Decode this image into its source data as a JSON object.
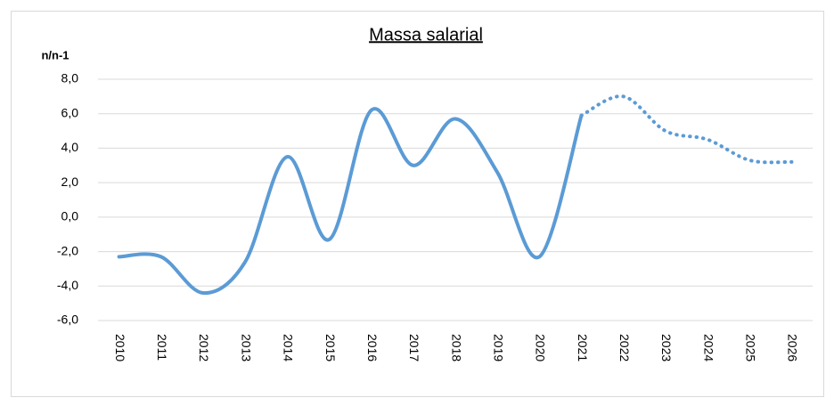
{
  "chart_data": {
    "type": "line",
    "title": "Massa salarial",
    "y_label": "n/n-1",
    "categories": [
      "2010",
      "2011",
      "2012",
      "2013",
      "2014",
      "2015",
      "2016",
      "2017",
      "2018",
      "2019",
      "2020",
      "2021",
      "2022",
      "2023",
      "2024",
      "2025",
      "2026"
    ],
    "series": [
      {
        "color": "#5b9bd5",
        "style": "solid",
        "values": [
          -2.3,
          -2.3,
          -4.4,
          -2.6,
          3.5,
          -1.3,
          6.2,
          3.0,
          5.7,
          2.6,
          -2.3,
          5.9,
          null,
          null,
          null,
          null,
          null
        ]
      },
      {
        "color": "#5b9bd5",
        "style": "dotted",
        "values": [
          null,
          null,
          null,
          null,
          null,
          null,
          null,
          null,
          null,
          null,
          null,
          5.9,
          7.0,
          5.0,
          4.5,
          3.3,
          3.2
        ]
      }
    ],
    "ylim": [
      -6,
      8
    ],
    "yticks": [
      {
        "value": -6,
        "label": "-6,0"
      },
      {
        "value": -4,
        "label": "-4,0"
      },
      {
        "value": -2,
        "label": "-2,0"
      },
      {
        "value": 0,
        "label": "0,0"
      },
      {
        "value": 2,
        "label": "2,0"
      },
      {
        "value": 4,
        "label": "4,0"
      },
      {
        "value": 6,
        "label": "6,0"
      },
      {
        "value": 8,
        "label": "8,0"
      }
    ],
    "grid": true,
    "smooth": true
  }
}
